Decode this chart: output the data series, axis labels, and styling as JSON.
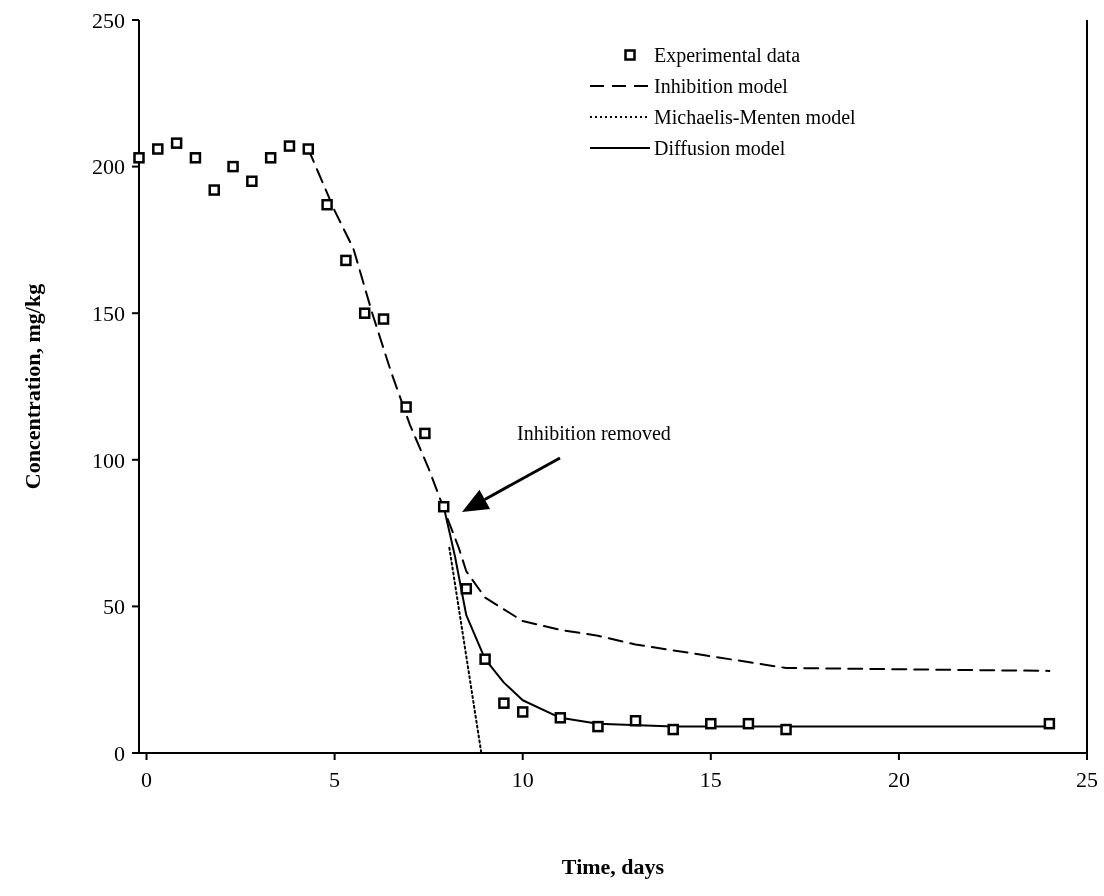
{
  "chart_data": {
    "type": "scatter",
    "xlabel": "Time, days",
    "ylabel": "Concentration, mg/kg",
    "xlim": [
      -0.2,
      25
    ],
    "ylim": [
      0,
      250
    ],
    "xticks": [
      0,
      5,
      10,
      15,
      20,
      25
    ],
    "yticks": [
      0,
      50,
      100,
      150,
      200,
      250
    ],
    "grid": false,
    "legend": "top right",
    "annotations": [
      "Inhibition removed"
    ],
    "series": [
      {
        "name": "Experimental data",
        "marker": "square",
        "color": "#000000",
        "x": [
          -0.2,
          0.3,
          0.8,
          1.3,
          1.8,
          2.3,
          2.8,
          3.3,
          3.8,
          4.3,
          4.8,
          5.3,
          5.8,
          6.3,
          6.9,
          7.4,
          7.9,
          8.5,
          9,
          9.5,
          10,
          11,
          12,
          13,
          14,
          15,
          16,
          17,
          24
        ],
        "values": [
          203,
          206,
          208,
          203,
          192,
          200,
          195,
          203,
          207,
          206,
          187,
          168,
          150,
          148,
          118,
          109,
          84,
          56,
          32,
          17,
          14,
          12,
          9,
          11,
          8,
          10,
          10,
          8,
          10
        ]
      },
      {
        "name": "Inhibition model",
        "type": "line",
        "line_style": "dashed",
        "marker": "none",
        "color": "#000000",
        "x": [
          4.3,
          5,
          5.5,
          6,
          6.5,
          7,
          7.5,
          8,
          8.3,
          8.5,
          9,
          10,
          11,
          12,
          13,
          15,
          17,
          24
        ],
        "values": [
          206,
          185,
          172,
          150,
          130,
          112,
          97,
          80,
          70,
          62,
          53,
          45,
          42,
          40,
          37,
          33,
          29,
          28
        ]
      },
      {
        "name": "Michaelis-Menten model",
        "type": "line",
        "line_style": "dotted",
        "marker": "none",
        "color": "#000000",
        "x": [
          8.05,
          8.5,
          8.9
        ],
        "values": [
          70,
          33,
          0
        ]
      },
      {
        "name": "Diffusion model",
        "type": "line",
        "line_style": "solid",
        "marker": "none",
        "color": "#000000",
        "x": [
          7.9,
          8.2,
          8.5,
          9,
          9.5,
          10,
          11,
          12,
          14,
          17,
          24
        ],
        "values": [
          84,
          67,
          47,
          32,
          24,
          18,
          12,
          10,
          9,
          9,
          9
        ]
      }
    ]
  }
}
